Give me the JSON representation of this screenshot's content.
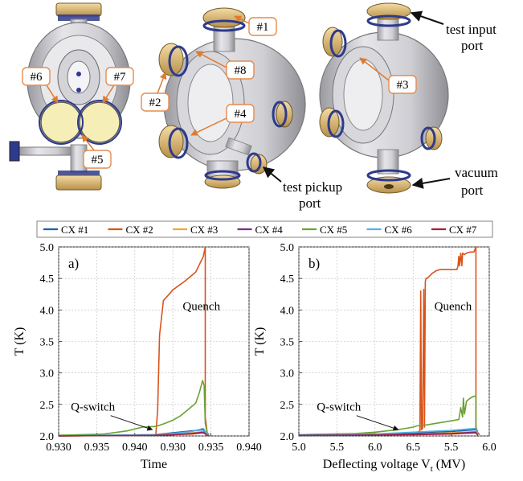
{
  "figure": {
    "port_labels": [
      "#1",
      "#2",
      "#3",
      "#4",
      "#5",
      "#6",
      "#7",
      "#8"
    ],
    "annotations": {
      "test_input": [
        "test input",
        "port"
      ],
      "test_pickup": [
        "test pickup",
        "port"
      ],
      "vacuum": [
        "vacuum",
        "port"
      ]
    },
    "colors": {
      "flange_gold": "#d8b56a",
      "flange_blue": "#2e3a8c",
      "body_grey": "#c8c8cc",
      "label_box_stroke": "#e58b4f",
      "arrow_orange": "#e07a2e"
    }
  },
  "legend": {
    "entries": [
      {
        "label": "CX #1",
        "color": "#1f5fa8"
      },
      {
        "label": "CX #2",
        "color": "#d9541a"
      },
      {
        "label": "CX #3",
        "color": "#f0a830"
      },
      {
        "label": "CX #4",
        "color": "#7a2d8c"
      },
      {
        "label": "CX #5",
        "color": "#6aa232"
      },
      {
        "label": "CX #6",
        "color": "#4db4e8"
      },
      {
        "label": "CX #7",
        "color": "#a3203a"
      }
    ]
  },
  "chart_data": [
    {
      "type": "line",
      "panel_label": "a)",
      "xlabel": "Time",
      "ylabel": "T (K)",
      "x_tick_labels": [
        "0.930",
        "0.935",
        "0.940",
        "0.930",
        "0.935",
        "0.940"
      ],
      "x_ticks_index": [
        0,
        1,
        2,
        3,
        4,
        5
      ],
      "xlim": [
        0,
        5
      ],
      "ylim": [
        2.0,
        5.0
      ],
      "y_ticks": [
        2.0,
        2.5,
        3.0,
        3.5,
        4.0,
        4.5,
        5.0
      ],
      "grid": true,
      "annotations": [
        {
          "text": "Quench",
          "x": 3.75,
          "y": 4.0
        },
        {
          "text": "Q-switch",
          "x": 0.9,
          "y": 2.4
        }
      ],
      "series": [
        {
          "name": "CX #2",
          "color": "#d9541a",
          "x": [
            0,
            2.3,
            2.55,
            2.6,
            2.65,
            2.75,
            2.9,
            3.0,
            3.3,
            3.6,
            3.8,
            3.85,
            3.85,
            3.9,
            3.95
          ],
          "y": [
            2.01,
            2.01,
            2.02,
            2.4,
            3.6,
            4.15,
            4.25,
            4.32,
            4.45,
            4.6,
            4.85,
            5.0,
            2.3,
            2.05,
            2.02
          ]
        },
        {
          "name": "CX #5",
          "color": "#6aa232",
          "x": [
            0,
            1.2,
            1.8,
            2.2,
            2.5,
            2.6,
            2.8,
            3.0,
            3.2,
            3.4,
            3.6,
            3.7,
            3.78,
            3.82,
            3.85,
            3.9,
            3.95
          ],
          "y": [
            2.01,
            2.03,
            2.08,
            2.14,
            2.15,
            2.16,
            2.2,
            2.25,
            2.32,
            2.42,
            2.52,
            2.7,
            2.88,
            2.8,
            2.2,
            2.05,
            2.02
          ]
        },
        {
          "name": "CX #1",
          "color": "#1f5fa8",
          "x": [
            0,
            2.5,
            3.0,
            3.5,
            3.8,
            3.9,
            3.95
          ],
          "y": [
            2.0,
            2.02,
            2.05,
            2.08,
            2.1,
            2.03,
            2.0
          ]
        },
        {
          "name": "CX #3",
          "color": "#f0a830",
          "x": [
            0,
            2.5,
            3.0,
            3.5,
            3.8,
            3.9,
            3.95
          ],
          "y": [
            2.0,
            2.01,
            2.03,
            2.05,
            2.07,
            2.02,
            2.0
          ]
        },
        {
          "name": "CX #4",
          "color": "#7a2d8c",
          "x": [
            0,
            2.5,
            3.0,
            3.5,
            3.8,
            3.9,
            3.95
          ],
          "y": [
            2.0,
            2.01,
            2.02,
            2.04,
            2.06,
            2.02,
            2.0
          ]
        },
        {
          "name": "CX #6",
          "color": "#4db4e8",
          "x": [
            0,
            2.5,
            3.0,
            3.5,
            3.8,
            3.9,
            3.95
          ],
          "y": [
            2.0,
            2.02,
            2.04,
            2.07,
            2.12,
            2.03,
            2.0
          ]
        },
        {
          "name": "CX #7",
          "color": "#a3203a",
          "x": [
            0,
            2.5,
            3.0,
            3.5,
            3.8,
            3.9,
            3.95
          ],
          "y": [
            2.0,
            2.01,
            2.02,
            2.03,
            2.05,
            2.01,
            2.0
          ]
        }
      ]
    },
    {
      "type": "line",
      "panel_label": "b)",
      "xlabel": "Deflecting voltage V",
      "xlabel_sub": "t",
      "xlabel_unit": " (MV)",
      "ylabel": "T (K)",
      "x_tick_labels": [
        "5.0",
        "5.5",
        "6.0",
        "6.5",
        "5.5",
        "6.0"
      ],
      "x_ticks_index": [
        0,
        1,
        2,
        3,
        4,
        5
      ],
      "xlim": [
        0,
        5
      ],
      "ylim": [
        2.0,
        5.0
      ],
      "y_ticks": [
        2.0,
        2.5,
        3.0,
        3.5,
        4.0,
        4.5,
        5.0
      ],
      "grid": true,
      "annotations": [
        {
          "text": "Quench",
          "x": 4.05,
          "y": 4.0
        },
        {
          "text": "Q-switch",
          "x": 1.05,
          "y": 2.4
        }
      ],
      "series": [
        {
          "name": "CX #2",
          "color": "#d9541a",
          "x": [
            0,
            2.7,
            3.1,
            3.18,
            3.2,
            3.22,
            3.25,
            3.28,
            3.3,
            3.32,
            3.34,
            3.36,
            3.4,
            3.45,
            3.5,
            3.55,
            3.6,
            3.7,
            3.8,
            3.85,
            3.9,
            3.95,
            4.0,
            4.05,
            4.1,
            4.15,
            4.18,
            4.2,
            4.22,
            4.25,
            4.28,
            4.3,
            4.35,
            4.4,
            4.5,
            4.6,
            4.65,
            4.65,
            4.7,
            4.75
          ],
          "y": [
            2.02,
            2.04,
            2.06,
            2.08,
            4.3,
            2.1,
            2.12,
            4.33,
            2.14,
            4.45,
            4.5,
            4.5,
            4.52,
            4.55,
            4.58,
            4.6,
            4.62,
            4.64,
            4.64,
            4.64,
            4.64,
            4.64,
            4.64,
            4.64,
            4.64,
            4.64,
            4.7,
            4.85,
            4.7,
            4.9,
            4.7,
            4.9,
            4.88,
            4.9,
            4.92,
            4.92,
            5.0,
            2.15,
            2.05,
            2.02
          ]
        },
        {
          "name": "CX #5",
          "color": "#6aa232",
          "x": [
            0,
            1.5,
            2.0,
            2.6,
            3.0,
            3.1,
            3.4,
            3.6,
            3.8,
            4.0,
            4.2,
            4.25,
            4.3,
            4.32,
            4.35,
            4.4,
            4.5,
            4.6,
            4.65,
            4.65,
            4.7
          ],
          "y": [
            2.02,
            2.04,
            2.06,
            2.1,
            2.14,
            2.16,
            2.18,
            2.2,
            2.22,
            2.24,
            2.26,
            2.45,
            2.3,
            2.6,
            2.35,
            2.55,
            2.6,
            2.63,
            2.63,
            2.1,
            2.05
          ]
        },
        {
          "name": "CX #1",
          "color": "#1f5fa8",
          "x": [
            0,
            2.0,
            3.0,
            4.0,
            4.65,
            4.7
          ],
          "y": [
            2.02,
            2.03,
            2.05,
            2.07,
            2.1,
            2.03
          ]
        },
        {
          "name": "CX #3",
          "color": "#f0a830",
          "x": [
            0,
            2.0,
            3.0,
            4.0,
            4.65,
            4.7
          ],
          "y": [
            2.01,
            2.02,
            2.03,
            2.05,
            2.07,
            2.02
          ]
        },
        {
          "name": "CX #4",
          "color": "#7a2d8c",
          "x": [
            0,
            2.0,
            3.0,
            4.0,
            4.65,
            4.7
          ],
          "y": [
            2.01,
            2.02,
            2.03,
            2.04,
            2.06,
            2.02
          ]
        },
        {
          "name": "CX #6",
          "color": "#4db4e8",
          "x": [
            0,
            2.0,
            3.0,
            4.0,
            4.65,
            4.7
          ],
          "y": [
            2.02,
            2.03,
            2.06,
            2.09,
            2.12,
            2.03
          ]
        },
        {
          "name": "CX #7",
          "color": "#a3203a",
          "x": [
            0,
            2.0,
            3.0,
            4.0,
            4.65,
            4.7
          ],
          "y": [
            2.01,
            2.015,
            2.02,
            2.03,
            2.05,
            2.01
          ]
        }
      ]
    }
  ]
}
